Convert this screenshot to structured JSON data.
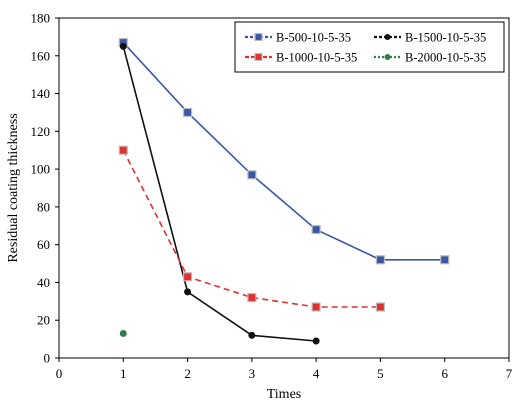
{
  "chart_data": {
    "type": "line",
    "title": "",
    "xlabel": "Times",
    "ylabel": "Residual coating thickness",
    "xlim": [
      0,
      7
    ],
    "ylim": [
      0,
      180
    ],
    "x_ticks": [
      0,
      1,
      2,
      3,
      4,
      5,
      6,
      7
    ],
    "y_ticks": [
      0,
      20,
      40,
      60,
      80,
      100,
      120,
      140,
      160,
      180
    ],
    "grid": false,
    "legend_position": "top-right",
    "series": [
      {
        "name": "B-500-10-5-35",
        "color": "#3a56a6",
        "marker": "square",
        "line_style": "solid",
        "x": [
          1,
          2,
          3,
          4,
          5,
          6
        ],
        "y": [
          167,
          130,
          97,
          68,
          52,
          52
        ]
      },
      {
        "name": "B-1500-10-5-35",
        "color": "#111111",
        "marker": "circle",
        "line_style": "solid",
        "x": [
          1,
          2,
          3,
          4
        ],
        "y": [
          165,
          35,
          12,
          9
        ]
      },
      {
        "name": "B-1000-10-5-35",
        "color": "#e03030",
        "marker": "square",
        "line_style": "dashed",
        "x": [
          1,
          2,
          3,
          4,
          5
        ],
        "y": [
          110,
          43,
          32,
          27,
          27
        ]
      },
      {
        "name": "B-2000-10-5-35",
        "color": "#2e7d4a",
        "marker": "circle",
        "line_style": "dotted",
        "x": [
          1
        ],
        "y": [
          13
        ]
      }
    ]
  }
}
